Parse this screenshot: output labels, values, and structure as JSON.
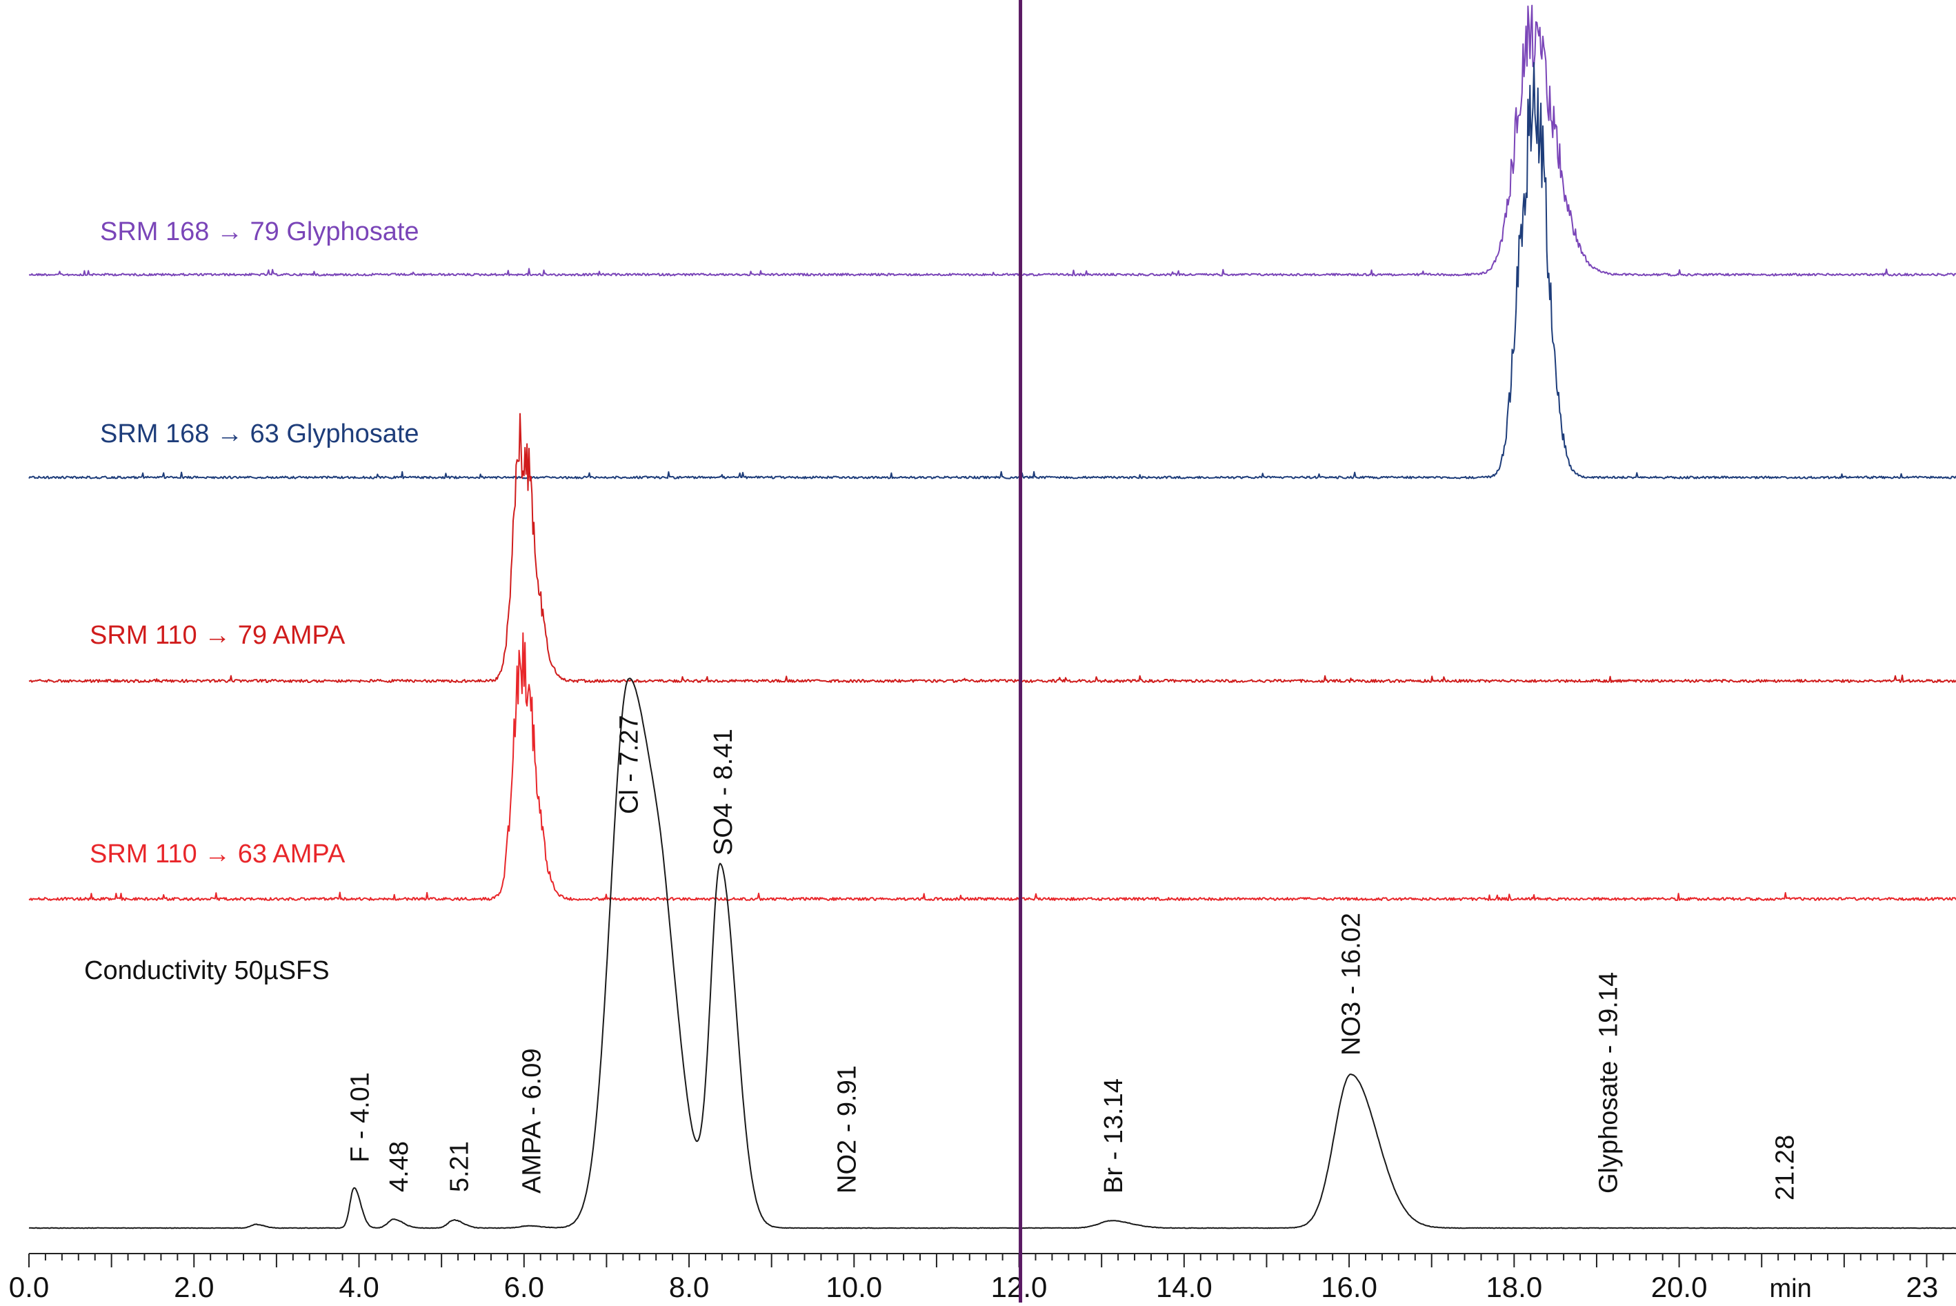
{
  "chart_data": {
    "type": "line",
    "title": "",
    "xlabel": "min",
    "ylabel": "",
    "xlim": [
      0,
      23
    ],
    "x_ticks": [
      "0.0",
      "2.0",
      "4.0",
      "6.0",
      "8.0",
      "10.0",
      "12.0",
      "14.0",
      "16.0",
      "18.0",
      "20.0",
      "23"
    ],
    "x_tick_values": [
      0,
      2,
      4,
      6,
      8,
      10,
      12,
      14,
      16,
      18,
      20,
      23
    ],
    "marker_line": {
      "x": 12.0,
      "color": "#5a1a63"
    },
    "series": [
      {
        "name": "SRM 168 → 79 Glyphosate",
        "color": "#7a45b8",
        "baseline": 0,
        "peaks": [
          {
            "rt": 18.2,
            "height": 100,
            "width": 0.18
          }
        ]
      },
      {
        "name": "SRM 168 → 63 Glyphosate",
        "color": "#1e3d7a",
        "baseline": 0,
        "peaks": [
          {
            "rt": 18.12,
            "height": 95,
            "width": 0.12
          },
          {
            "rt": 18.28,
            "height": 90,
            "width": 0.1
          }
        ]
      },
      {
        "name": "SRM 110 → 79 AMPA",
        "color": "#d01c1c",
        "baseline": 0,
        "peaks": [
          {
            "rt": 5.97,
            "height": 100,
            "width": 0.1
          }
        ]
      },
      {
        "name": "SRM 110 → 63 AMPA",
        "color": "#e8262a",
        "baseline": 0,
        "peaks": [
          {
            "rt": 5.97,
            "height": 100,
            "width": 0.1
          }
        ]
      },
      {
        "name": "Conductivity 50µSFS",
        "color": "#1a1a1a",
        "baseline": 0,
        "peaks": [
          {
            "rt": 2.75,
            "height": 0.5,
            "width": 0.06
          },
          {
            "rt": 3.94,
            "height": 5.5,
            "width": 0.05
          },
          {
            "rt": 4.42,
            "height": 1.2,
            "width": 0.07
          },
          {
            "rt": 5.15,
            "height": 1.1,
            "width": 0.07
          },
          {
            "rt": 6.05,
            "height": 0.3,
            "width": 0.1
          },
          {
            "rt": 7.27,
            "height": 75,
            "width": 0.22
          },
          {
            "rt": 7.72,
            "height": 14,
            "width": 0.15
          },
          {
            "rt": 8.38,
            "height": 49,
            "width": 0.12
          },
          {
            "rt": 13.12,
            "height": 1.0,
            "width": 0.15
          },
          {
            "rt": 16.02,
            "height": 21,
            "width": 0.2
          }
        ]
      }
    ],
    "peak_labels": [
      {
        "text": "F - 4.01",
        "rt": 4.01
      },
      {
        "text": "4.48",
        "rt": 4.48
      },
      {
        "text": "5.21",
        "rt": 5.21
      },
      {
        "text": "AMPA - 6.09",
        "rt": 6.09
      },
      {
        "text": "Cl - 7.27",
        "rt": 7.27
      },
      {
        "text": "SO4 - 8.41",
        "rt": 8.41
      },
      {
        "text": "NO2 - 9.91",
        "rt": 9.91
      },
      {
        "text": "Br - 13.14",
        "rt": 13.14
      },
      {
        "text": "NO3 - 16.02",
        "rt": 16.02
      },
      {
        "text": "Glyphosate - 19.14",
        "rt": 19.14
      },
      {
        "text": "21.28",
        "rt": 21.28
      }
    ]
  }
}
